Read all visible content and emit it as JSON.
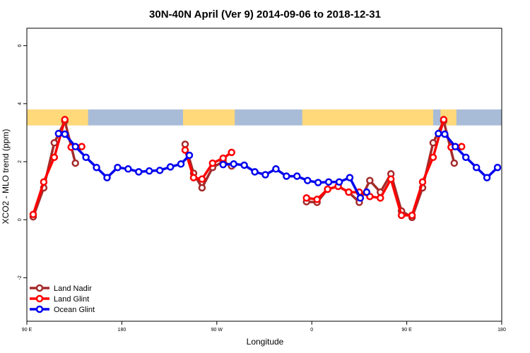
{
  "chart_data": {
    "type": "line",
    "title": "30N-40N April (Ver 9)   2014-09-06 to 2018-12-31",
    "xlabel": "Longitude",
    "ylabel": "XCO2 - MLO trend (ppm)",
    "xlim": [
      0,
      450
    ],
    "ylim": [
      -3.5,
      6.6
    ],
    "x_ticks": [
      {
        "value": 0,
        "label": "90 E"
      },
      {
        "value": 90,
        "label": "180"
      },
      {
        "value": 180,
        "label": "90 W"
      },
      {
        "value": 270,
        "label": "0"
      },
      {
        "value": 360,
        "label": "90 E"
      },
      {
        "value": 450,
        "label": "180"
      }
    ],
    "y_ticks": [
      -2,
      0,
      2,
      4,
      6
    ],
    "grid": false,
    "legend_position": "bottom-left",
    "land_mask_band": {
      "y_range": [
        3.25,
        3.8
      ],
      "ocean_color": "#a8bcd8",
      "land_color": "#ffd97a",
      "land_segments": [
        [
          0,
          58
        ],
        [
          148,
          197
        ],
        [
          261,
          385
        ],
        [
          392,
          407
        ]
      ]
    },
    "series": [
      {
        "name": "Land Nadir",
        "color": "#a52a2a",
        "segments": [
          [
            [
              6,
              0.1
            ],
            [
              16,
              1.1
            ],
            [
              26,
              2.65
            ],
            [
              36,
              3.4
            ],
            [
              46,
              1.95
            ]
          ],
          [
            [
              150,
              2.6
            ],
            [
              158,
              1.6
            ],
            [
              166,
              1.1
            ],
            [
              176,
              1.8
            ],
            [
              186,
              2.0
            ],
            [
              194,
              1.85
            ]
          ],
          [
            [
              265,
              0.62
            ],
            [
              275,
              0.6
            ],
            [
              285,
              1.05
            ],
            [
              295,
              1.15
            ],
            [
              305,
              0.95
            ],
            [
              315,
              0.6
            ],
            [
              325,
              1.35
            ],
            [
              335,
              0.95
            ],
            [
              345,
              1.58
            ],
            [
              355,
              0.3
            ],
            [
              365,
              0.08
            ],
            [
              375,
              1.1
            ],
            [
              385,
              2.65
            ],
            [
              395,
              3.4
            ],
            [
              405,
              1.95
            ]
          ]
        ]
      },
      {
        "name": "Land Glint",
        "color": "#ff0000",
        "segments": [
          [
            [
              6,
              0.18
            ],
            [
              16,
              1.3
            ],
            [
              26,
              2.15
            ],
            [
              36,
              3.45
            ]
          ],
          [
            [
              42,
              2.5
            ],
            [
              52,
              2.52
            ]
          ],
          [
            [
              150,
              2.4
            ],
            [
              158,
              1.45
            ],
            [
              166,
              1.4
            ],
            [
              176,
              1.95
            ],
            [
              186,
              2.12
            ],
            [
              194,
              2.32
            ]
          ],
          [
            [
              265,
              0.75
            ],
            [
              275,
              0.7
            ],
            [
              285,
              1.05
            ],
            [
              295,
              1.15
            ],
            [
              305,
              0.95
            ],
            [
              315,
              0.95
            ],
            [
              325,
              0.8
            ],
            [
              335,
              0.75
            ],
            [
              345,
              1.4
            ],
            [
              355,
              0.15
            ],
            [
              365,
              0.15
            ],
            [
              375,
              1.3
            ],
            [
              385,
              2.15
            ],
            [
              395,
              3.45
            ]
          ],
          [
            [
              402,
              2.5
            ],
            [
              412,
              2.52
            ]
          ]
        ]
      },
      {
        "name": "Ocean Glint",
        "color": "#0000ee",
        "segments": [
          [
            [
              30,
              2.97
            ],
            [
              36,
              2.95
            ],
            [
              46,
              2.52
            ],
            [
              56,
              2.15
            ],
            [
              66,
              1.8
            ],
            [
              76,
              1.45
            ],
            [
              86,
              1.8
            ],
            [
              96,
              1.75
            ],
            [
              106,
              1.65
            ],
            [
              116,
              1.68
            ],
            [
              126,
              1.7
            ],
            [
              136,
              1.82
            ],
            [
              146,
              1.92
            ],
            [
              154,
              2.22
            ]
          ],
          [
            [
              186,
              1.9
            ],
            [
              196,
              1.92
            ],
            [
              206,
              1.88
            ],
            [
              216,
              1.65
            ],
            [
              226,
              1.55
            ],
            [
              236,
              1.75
            ],
            [
              246,
              1.5
            ],
            [
              256,
              1.5
            ],
            [
              266,
              1.35
            ],
            [
              276,
              1.28
            ],
            [
              286,
              1.3
            ],
            [
              296,
              1.3
            ],
            [
              306,
              1.45
            ],
            [
              316,
              0.75
            ]
          ],
          [
            [
              322,
              0.95
            ]
          ],
          [
            [
              390,
              2.97
            ],
            [
              396,
              2.95
            ],
            [
              406,
              2.52
            ],
            [
              416,
              2.15
            ],
            [
              426,
              1.8
            ],
            [
              436,
              1.45
            ],
            [
              446,
              1.8
            ]
          ]
        ]
      }
    ]
  }
}
